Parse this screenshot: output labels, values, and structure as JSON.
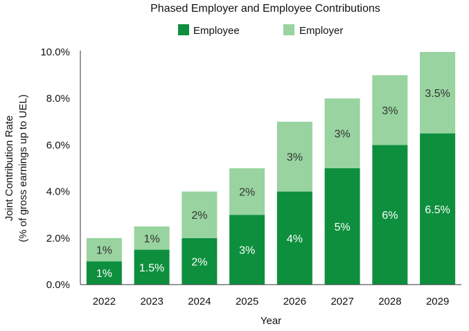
{
  "chart_data": {
    "type": "bar",
    "stacked": true,
    "title": "Phased Employer and Employee Contributions",
    "xlabel": "Year",
    "ylabel": [
      "Joint Contribution Rate",
      "(% of gross earnings up to UEL)"
    ],
    "categories": [
      "2022",
      "2023",
      "2024",
      "2025",
      "2026",
      "2027",
      "2028",
      "2029"
    ],
    "ylim": [
      0,
      10
    ],
    "yticks": [
      0,
      2,
      4,
      6,
      8,
      10
    ],
    "ytick_labels": [
      "0.0%",
      "2.0%",
      "4.0%",
      "6.0%",
      "8.0%",
      "10.0%"
    ],
    "legend_position": "top",
    "grid": false,
    "series": [
      {
        "name": "Employee",
        "color": "#0e8f3e",
        "label_color": "#ffffff",
        "values": [
          1,
          1.5,
          2,
          3,
          4,
          5,
          6,
          6.5
        ],
        "labels": [
          "1%",
          "1.5%",
          "2%",
          "3%",
          "4%",
          "5%",
          "6%",
          "6.5%"
        ]
      },
      {
        "name": "Employer",
        "color": "#98d3a0",
        "label_color": "#333333",
        "values": [
          1,
          1,
          2,
          2,
          3,
          3,
          3,
          3.5
        ],
        "labels": [
          "1%",
          "1%",
          "2%",
          "2%",
          "3%",
          "3%",
          "3%",
          "3.5%"
        ]
      }
    ]
  }
}
